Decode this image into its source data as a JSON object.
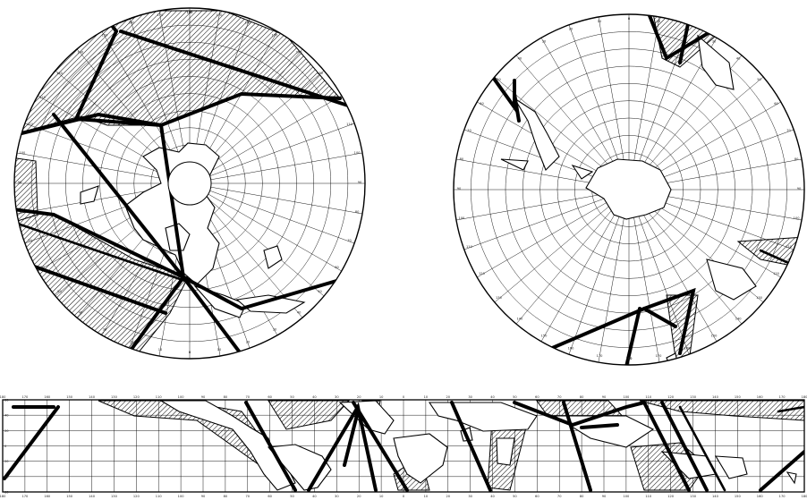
{
  "maps": [
    {
      "id": "north-polar",
      "graticule_labels": [
        "180",
        "170",
        "160",
        "150",
        "140",
        "130",
        "120",
        "110",
        "100",
        "90",
        "80",
        "70",
        "60",
        "50",
        "40",
        "30",
        "20",
        "10",
        "0"
      ]
    },
    {
      "id": "south-polar",
      "graticule_labels": [
        "0",
        "10",
        "20",
        "30",
        "40",
        "50",
        "60",
        "70",
        "80",
        "90",
        "100",
        "110",
        "120",
        "130",
        "140",
        "150",
        "160",
        "170",
        "180"
      ]
    },
    {
      "id": "world-strip",
      "longitude_labels": [
        "180",
        "170",
        "160",
        "150",
        "140",
        "130",
        "120",
        "110",
        "100",
        "90",
        "80",
        "70",
        "60",
        "50",
        "40",
        "30",
        "20",
        "10",
        "0",
        "10",
        "20",
        "30",
        "40",
        "50",
        "60",
        "70",
        "80",
        "90",
        "100",
        "110",
        "120",
        "130",
        "140",
        "150",
        "160",
        "170",
        "180"
      ],
      "latitude_labels": [
        "60",
        "40",
        "20",
        "0",
        "20",
        "40",
        "60"
      ]
    }
  ],
  "colors": {
    "ink": "#000000",
    "paper": "#ffffff"
  }
}
